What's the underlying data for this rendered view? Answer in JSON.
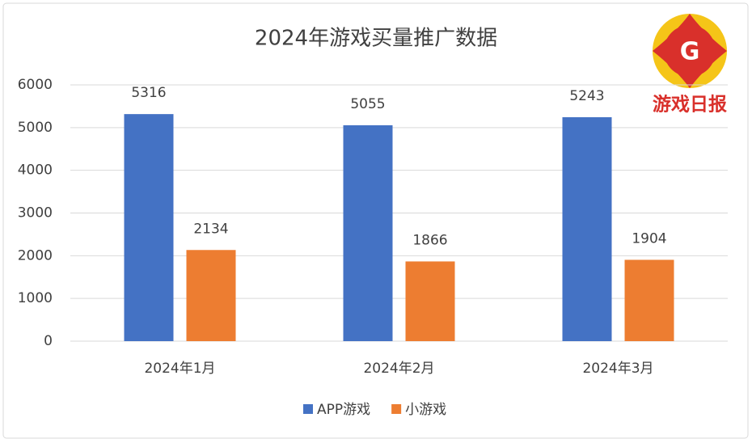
{
  "chart_data": {
    "type": "bar",
    "title": "2024年游戏买量推广数据",
    "categories": [
      "2024年1月",
      "2024年2月",
      "2024年3月"
    ],
    "series": [
      {
        "name": "APP游戏",
        "color": "#4472c4",
        "values": [
          5316,
          5055,
          5243
        ]
      },
      {
        "name": "小游戏",
        "color": "#ed7d31",
        "values": [
          2134,
          1866,
          1904
        ]
      }
    ],
    "ylim": [
      0,
      6000
    ],
    "yticks": [
      0,
      1000,
      2000,
      3000,
      4000,
      5000,
      6000
    ],
    "grid": true,
    "legend": "bottom"
  },
  "logo": {
    "letter": "G",
    "text": "游戏日报"
  }
}
